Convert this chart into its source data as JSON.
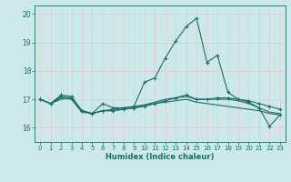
{
  "xlabel": "Humidex (Indice chaleur)",
  "xlim": [
    -0.5,
    23.5
  ],
  "ylim": [
    15.5,
    20.3
  ],
  "yticks": [
    16,
    17,
    18,
    19,
    20
  ],
  "xticks": [
    0,
    1,
    2,
    3,
    4,
    5,
    6,
    7,
    8,
    9,
    10,
    11,
    12,
    13,
    14,
    15,
    16,
    17,
    18,
    19,
    20,
    21,
    22,
    23
  ],
  "background_color": "#cce8ea",
  "grid_color": "#e8c8c8",
  "line_color": "#1a6e6a",
  "series": [
    [
      17.0,
      16.85,
      17.15,
      17.1,
      16.6,
      16.5,
      16.85,
      16.7,
      16.7,
      16.75,
      17.6,
      17.75,
      18.45,
      19.05,
      19.55,
      19.85,
      18.3,
      18.55,
      17.25,
      17.0,
      16.9,
      16.7,
      16.05,
      16.45
    ],
    [
      17.0,
      16.85,
      17.1,
      17.05,
      16.6,
      16.5,
      16.6,
      16.6,
      16.65,
      16.7,
      16.75,
      16.85,
      16.95,
      17.05,
      17.15,
      17.0,
      17.0,
      17.05,
      17.05,
      17.0,
      16.95,
      16.85,
      16.75,
      16.65
    ],
    [
      17.0,
      16.85,
      17.05,
      17.0,
      16.55,
      16.5,
      16.6,
      16.6,
      16.65,
      16.7,
      16.8,
      16.9,
      17.0,
      17.05,
      17.1,
      17.0,
      17.0,
      17.0,
      17.0,
      16.95,
      16.85,
      16.7,
      16.55,
      16.5
    ],
    [
      17.0,
      16.85,
      17.0,
      17.05,
      16.6,
      16.5,
      16.6,
      16.65,
      16.7,
      16.75,
      16.8,
      16.85,
      16.9,
      16.95,
      17.0,
      16.9,
      16.85,
      16.8,
      16.75,
      16.7,
      16.65,
      16.6,
      16.5,
      16.45
    ]
  ],
  "marker_series": 0,
  "marker": "+"
}
